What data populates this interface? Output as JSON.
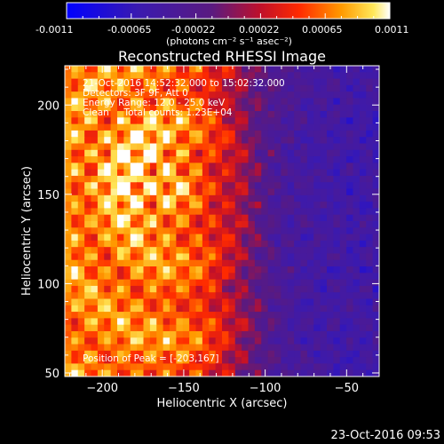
{
  "colorbar": {
    "ticks": [
      "-0.0011",
      "-0.00065",
      "-0.00022",
      "0.00022",
      "0.00065",
      "0.0011"
    ],
    "unit_label": "(photons cm⁻² s⁻¹ asec⁻²)"
  },
  "chart_data": {
    "type": "heatmap",
    "title": "Reconstructed RHESSI Image",
    "xlabel": "Heliocentric X (arcsec)",
    "ylabel": "Heliocentric Y (arcsec)",
    "xlim": [
      -223,
      -30
    ],
    "ylim": [
      48,
      222
    ],
    "x_ticks": [
      -200,
      -150,
      -100,
      -50
    ],
    "y_ticks": [
      50,
      100,
      150,
      200
    ],
    "color_range": [
      -0.0011,
      0.0011
    ],
    "colormap": "blue-purple-red-orange-yellow-white",
    "peak_position": [
      -203,
      167
    ],
    "annotations": [
      "21-Oct-2016 14:52:32.000 to 15:02:32.000",
      "Detectors: 3F 9F, Att 0",
      "Energy Range: 12.0 - 25.0 keV",
      "Clean     Total counts: 1.23E+04"
    ],
    "peak_label": "Position of Peak = [-203,167]"
  },
  "footer_timestamp": "23-Oct-2016 09:53"
}
